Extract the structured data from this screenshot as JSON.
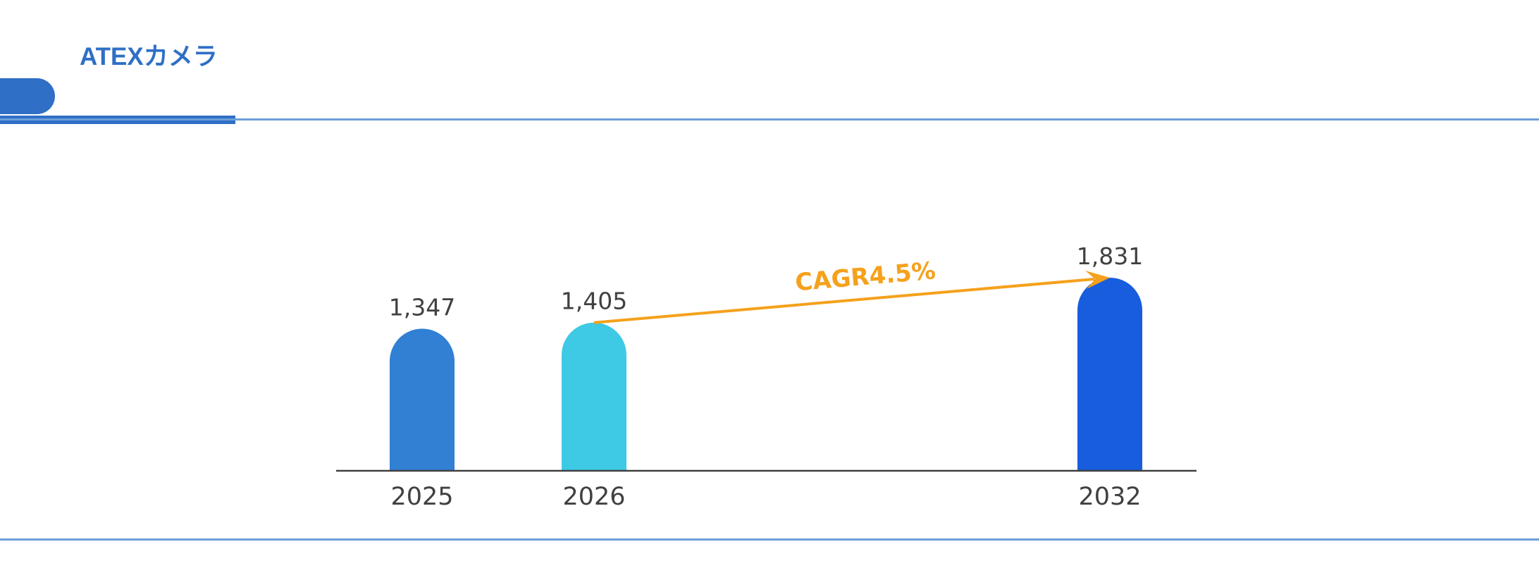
{
  "header": {
    "title": "ATEXカメラ",
    "accent_color": "#2f6fc6",
    "line_color": "#6b9ed8"
  },
  "chart_data": {
    "type": "bar",
    "categories": [
      "2025",
      "2026",
      "2032"
    ],
    "values": [
      1347,
      1405,
      1831
    ],
    "data_labels": [
      "1,347",
      "1,405",
      "1,831"
    ],
    "bar_colors": [
      "#3180d4",
      "#3ec9e4",
      "#175ddd"
    ],
    "title": "",
    "xlabel": "",
    "ylabel": "",
    "ylim": [
      0,
      1831
    ],
    "grid": false,
    "legend": "none",
    "annotation": {
      "text": "CAGR4.5%",
      "from_category": "2026",
      "to_category": "2032",
      "color": "#f5a11c"
    }
  }
}
